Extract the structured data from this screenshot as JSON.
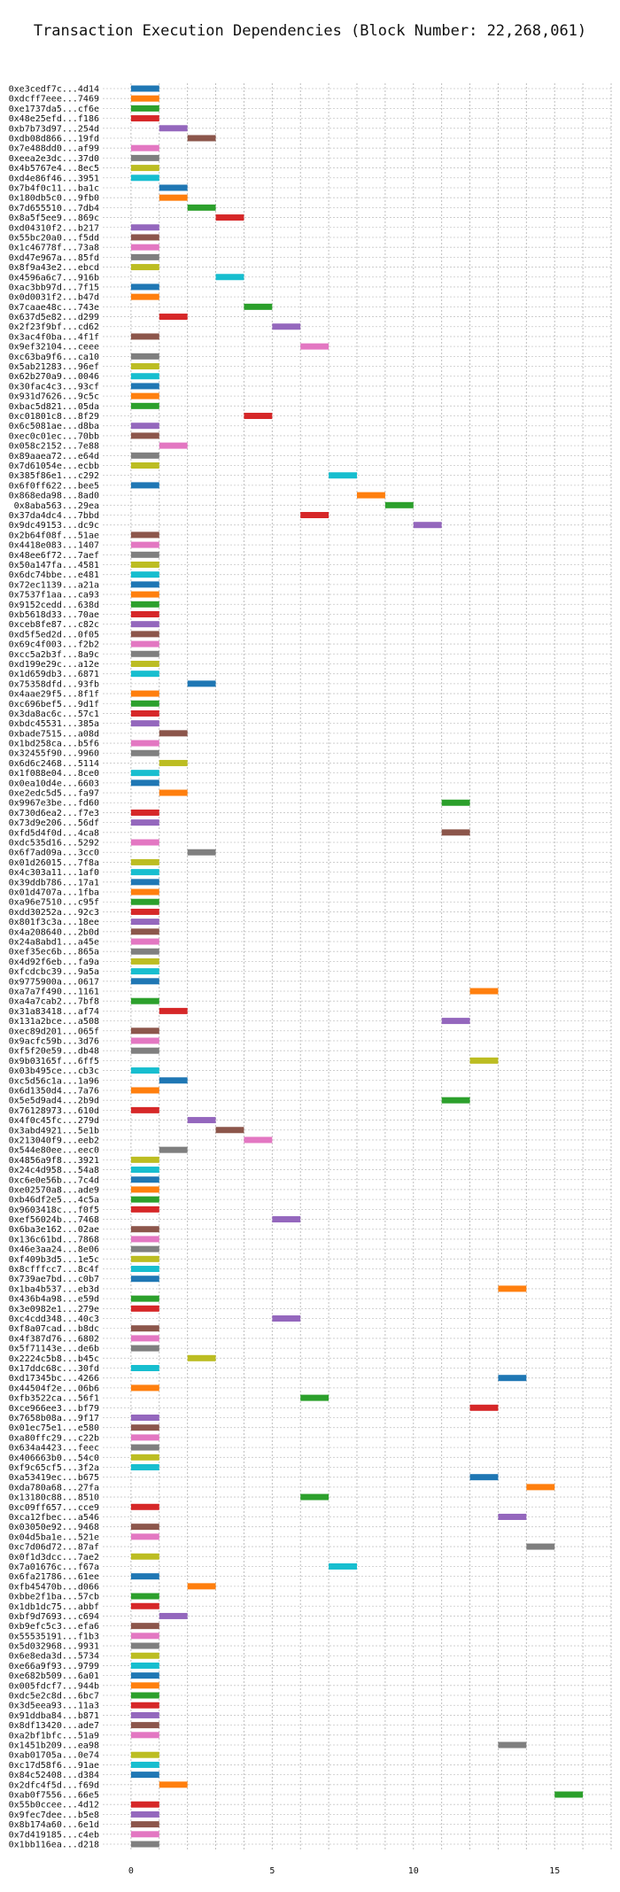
{
  "chart_data": {
    "type": "bar",
    "orientation": "horizontal-gantt",
    "title": "Transaction Execution Dependencies (Block Number: 22,268,061)",
    "xlabel": "",
    "ylabel": "",
    "xlim": [
      -1,
      17
    ],
    "xticks": [
      0,
      5,
      10,
      15
    ],
    "grid": true,
    "palette": [
      "#1f77b4",
      "#ff7f0e",
      "#2ca02c",
      "#d62728",
      "#9467bd",
      "#8c564b",
      "#e377c2",
      "#7f7f7f",
      "#bcbd22",
      "#17becf"
    ],
    "transactions": [
      {
        "id": "0xe3cedf7c...4d14",
        "start": 0,
        "end": 1
      },
      {
        "id": "0xdcff7eee...7469",
        "start": 0,
        "end": 1
      },
      {
        "id": "0xe1737da5...cf6e",
        "start": 0,
        "end": 1
      },
      {
        "id": "0x48e25efd...f186",
        "start": 0,
        "end": 1
      },
      {
        "id": "0xb7b73d97...254d",
        "start": 1,
        "end": 2
      },
      {
        "id": "0xdb08d866...19fd",
        "start": 2,
        "end": 3
      },
      {
        "id": "0x7e488dd0...af99",
        "start": 0,
        "end": 1
      },
      {
        "id": "0xeea2e3dc...37d0",
        "start": 0,
        "end": 1
      },
      {
        "id": "0x4b5767e4...8ec5",
        "start": 0,
        "end": 1
      },
      {
        "id": "0xd4e86f46...3951",
        "start": 0,
        "end": 1
      },
      {
        "id": "0x7b4f0c11...ba1c",
        "start": 1,
        "end": 2
      },
      {
        "id": "0x180db5c0...9fb0",
        "start": 1,
        "end": 2
      },
      {
        "id": "0x7d655510...7db4",
        "start": 2,
        "end": 3
      },
      {
        "id": "0x8a5f5ee9...869c",
        "start": 3,
        "end": 4
      },
      {
        "id": "0xd04310f2...b217",
        "start": 0,
        "end": 1
      },
      {
        "id": "0x55bc20a0...f5dd",
        "start": 0,
        "end": 1
      },
      {
        "id": "0x1c46778f...73a8",
        "start": 0,
        "end": 1
      },
      {
        "id": "0xd47e967a...85fd",
        "start": 0,
        "end": 1
      },
      {
        "id": "0x8f9a43e2...ebcd",
        "start": 0,
        "end": 1
      },
      {
        "id": "0x4596a6c7...916b",
        "start": 3,
        "end": 4
      },
      {
        "id": "0xac3bb97d...7f15",
        "start": 0,
        "end": 1
      },
      {
        "id": "0x0d0031f2...b47d",
        "start": 0,
        "end": 1
      },
      {
        "id": "0x7caae48c...743e",
        "start": 4,
        "end": 5
      },
      {
        "id": "0x637d5e82...d299",
        "start": 1,
        "end": 2
      },
      {
        "id": "0x2f23f9bf...cd62",
        "start": 5,
        "end": 6
      },
      {
        "id": "0x3ac4f0ba...4f1f",
        "start": 0,
        "end": 1
      },
      {
        "id": "0x9ef32104...ceee",
        "start": 6,
        "end": 7
      },
      {
        "id": "0xc63ba9f6...ca10",
        "start": 0,
        "end": 1
      },
      {
        "id": "0x5ab21283...96ef",
        "start": 0,
        "end": 1
      },
      {
        "id": "0x62b270a9...0046",
        "start": 0,
        "end": 1
      },
      {
        "id": "0x30fac4c3...93cf",
        "start": 0,
        "end": 1
      },
      {
        "id": "0x931d7626...9c5c",
        "start": 0,
        "end": 1
      },
      {
        "id": "0xbac5d821...05da",
        "start": 0,
        "end": 1
      },
      {
        "id": "0xc01801c8...8f29",
        "start": 4,
        "end": 5
      },
      {
        "id": "0x6c5081ae...d8ba",
        "start": 0,
        "end": 1
      },
      {
        "id": "0xec0c01ec...70bb",
        "start": 0,
        "end": 1
      },
      {
        "id": "0x058c2152...7e88",
        "start": 1,
        "end": 2
      },
      {
        "id": "0x89aaea72...e64d",
        "start": 0,
        "end": 1
      },
      {
        "id": "0x7d61054e...ecbb",
        "start": 0,
        "end": 1
      },
      {
        "id": "0x385f86e1...c292",
        "start": 7,
        "end": 8
      },
      {
        "id": "0x6f0ff622...bee5",
        "start": 0,
        "end": 1
      },
      {
        "id": "0x868eda98...8ad0",
        "start": 8,
        "end": 9
      },
      {
        "id": "0x8aba563...29ea",
        "start": 9,
        "end": 10
      },
      {
        "id": "0x37da4dc4...7bbd",
        "start": 6,
        "end": 7
      },
      {
        "id": "0x9dc49153...dc9c",
        "start": 10,
        "end": 11
      },
      {
        "id": "0x2b64f08f...51ae",
        "start": 0,
        "end": 1
      },
      {
        "id": "0x4418e083...1407",
        "start": 0,
        "end": 1
      },
      {
        "id": "0x48ee6f72...7aef",
        "start": 0,
        "end": 1
      },
      {
        "id": "0x50a147fa...4581",
        "start": 0,
        "end": 1
      },
      {
        "id": "0x6dc74bbe...e481",
        "start": 0,
        "end": 1
      },
      {
        "id": "0x72ec1139...a21a",
        "start": 0,
        "end": 1
      },
      {
        "id": "0x7537f1aa...ca93",
        "start": 0,
        "end": 1
      },
      {
        "id": "0x9152cedd...638d",
        "start": 0,
        "end": 1
      },
      {
        "id": "0xb5618d33...70ae",
        "start": 0,
        "end": 1
      },
      {
        "id": "0xceb8fe87...c82c",
        "start": 0,
        "end": 1
      },
      {
        "id": "0xd5f5ed2d...0f05",
        "start": 0,
        "end": 1
      },
      {
        "id": "0x69c4f003...f2b2",
        "start": 0,
        "end": 1
      },
      {
        "id": "0xcc5a2b3f...8a9c",
        "start": 0,
        "end": 1
      },
      {
        "id": "0xd199e29c...a12e",
        "start": 0,
        "end": 1
      },
      {
        "id": "0x1d659db3...6871",
        "start": 0,
        "end": 1
      },
      {
        "id": "0x75358dfd...93fb",
        "start": 2,
        "end": 3
      },
      {
        "id": "0x4aae29f5...8f1f",
        "start": 0,
        "end": 1
      },
      {
        "id": "0xc696bef5...9d1f",
        "start": 0,
        "end": 1
      },
      {
        "id": "0x3da8ac6c...57c1",
        "start": 0,
        "end": 1
      },
      {
        "id": "0xbdc45531...385a",
        "start": 0,
        "end": 1
      },
      {
        "id": "0xbade7515...a08d",
        "start": 1,
        "end": 2
      },
      {
        "id": "0x1bd258ca...b5f6",
        "start": 0,
        "end": 1
      },
      {
        "id": "0x32455f90...9960",
        "start": 0,
        "end": 1
      },
      {
        "id": "0x6d6c2468...5114",
        "start": 1,
        "end": 2
      },
      {
        "id": "0x1f088e04...8ce0",
        "start": 0,
        "end": 1
      },
      {
        "id": "0x0ea10d4e...6603",
        "start": 0,
        "end": 1
      },
      {
        "id": "0xe2edc5d5...fa97",
        "start": 1,
        "end": 2
      },
      {
        "id": "0x9967e3be...fd60",
        "start": 11,
        "end": 12
      },
      {
        "id": "0x730d6ea2...f7e3",
        "start": 0,
        "end": 1
      },
      {
        "id": "0x73d9e206...56df",
        "start": 0,
        "end": 1
      },
      {
        "id": "0xfd5d4f0d...4ca8",
        "start": 11,
        "end": 12
      },
      {
        "id": "0xdc535d16...5292",
        "start": 0,
        "end": 1
      },
      {
        "id": "0x6f7ad09a...3cc0",
        "start": 2,
        "end": 3
      },
      {
        "id": "0x01d26015...7f8a",
        "start": 0,
        "end": 1
      },
      {
        "id": "0x4c303a11...1af0",
        "start": 0,
        "end": 1
      },
      {
        "id": "0x39ddb786...17a1",
        "start": 0,
        "end": 1
      },
      {
        "id": "0x01d4707a...1fba",
        "start": 0,
        "end": 1
      },
      {
        "id": "0xa96e7510...c95f",
        "start": 0,
        "end": 1
      },
      {
        "id": "0xdd30252a...92c3",
        "start": 0,
        "end": 1
      },
      {
        "id": "0x801f3c3a...18ee",
        "start": 0,
        "end": 1
      },
      {
        "id": "0x4a208640...2b0d",
        "start": 0,
        "end": 1
      },
      {
        "id": "0x24a8abd1...a45e",
        "start": 0,
        "end": 1
      },
      {
        "id": "0xef35ec6b...865a",
        "start": 0,
        "end": 1
      },
      {
        "id": "0x4d92f6eb...fa9a",
        "start": 0,
        "end": 1
      },
      {
        "id": "0xfcdcbc39...9a5a",
        "start": 0,
        "end": 1
      },
      {
        "id": "0x9775900a...0617",
        "start": 0,
        "end": 1
      },
      {
        "id": "0xa7a7f490...1161",
        "start": 12,
        "end": 13
      },
      {
        "id": "0xa4a7cab2...7bf8",
        "start": 0,
        "end": 1
      },
      {
        "id": "0x31a83418...af74",
        "start": 1,
        "end": 2
      },
      {
        "id": "0x131a2bce...a508",
        "start": 11,
        "end": 12
      },
      {
        "id": "0xec89d201...065f",
        "start": 0,
        "end": 1
      },
      {
        "id": "0x9acfc59b...3d76",
        "start": 0,
        "end": 1
      },
      {
        "id": "0xf5f20e59...db48",
        "start": 0,
        "end": 1
      },
      {
        "id": "0x9b03165f...6ff5",
        "start": 12,
        "end": 13
      },
      {
        "id": "0x03b495ce...cb3c",
        "start": 0,
        "end": 1
      },
      {
        "id": "0xc5d56c1a...1a96",
        "start": 1,
        "end": 2
      },
      {
        "id": "0x6d1350d4...7a76",
        "start": 0,
        "end": 1
      },
      {
        "id": "0x5e5d9ad4...2b9d",
        "start": 11,
        "end": 12
      },
      {
        "id": "0x76128973...610d",
        "start": 0,
        "end": 1
      },
      {
        "id": "0x4f0c45fc...279d",
        "start": 2,
        "end": 3
      },
      {
        "id": "0x3abd4921...5e1b",
        "start": 3,
        "end": 4
      },
      {
        "id": "0x213040f9...eeb2",
        "start": 4,
        "end": 5
      },
      {
        "id": "0x544e80ee...eec0",
        "start": 1,
        "end": 2
      },
      {
        "id": "0x4856a9f8...3921",
        "start": 0,
        "end": 1
      },
      {
        "id": "0x24c4d958...54a8",
        "start": 0,
        "end": 1
      },
      {
        "id": "0xc6e0e56b...7c4d",
        "start": 0,
        "end": 1
      },
      {
        "id": "0xe02570a8...ade9",
        "start": 0,
        "end": 1
      },
      {
        "id": "0xb46df2e5...4c5a",
        "start": 0,
        "end": 1
      },
      {
        "id": "0x9603418c...f0f5",
        "start": 0,
        "end": 1
      },
      {
        "id": "0xef56024b...7468",
        "start": 5,
        "end": 6
      },
      {
        "id": "0x6ba3e162...02ae",
        "start": 0,
        "end": 1
      },
      {
        "id": "0x136c61bd...7868",
        "start": 0,
        "end": 1
      },
      {
        "id": "0x46e3aa24...8e06",
        "start": 0,
        "end": 1
      },
      {
        "id": "0xf409b3d5...1e5c",
        "start": 0,
        "end": 1
      },
      {
        "id": "0x8cfffcc7...8c4f",
        "start": 0,
        "end": 1
      },
      {
        "id": "0x739ae7bd...c0b7",
        "start": 0,
        "end": 1
      },
      {
        "id": "0x1ba4b537...eb3d",
        "start": 13,
        "end": 14
      },
      {
        "id": "0x436b4a98...e59d",
        "start": 0,
        "end": 1
      },
      {
        "id": "0x3e0982e1...279e",
        "start": 0,
        "end": 1
      },
      {
        "id": "0xc4cdd348...40c3",
        "start": 5,
        "end": 6
      },
      {
        "id": "0xf8a07cad...b8dc",
        "start": 0,
        "end": 1
      },
      {
        "id": "0x4f387d76...6802",
        "start": 0,
        "end": 1
      },
      {
        "id": "0x5f71143e...de6b",
        "start": 0,
        "end": 1
      },
      {
        "id": "0x2224c5b8...b45c",
        "start": 2,
        "end": 3
      },
      {
        "id": "0x17ddc68c...30fd",
        "start": 0,
        "end": 1
      },
      {
        "id": "0xd17345bc...4266",
        "start": 13,
        "end": 14
      },
      {
        "id": "0x44504f2e...06b6",
        "start": 0,
        "end": 1
      },
      {
        "id": "0xfb3522ca...56f1",
        "start": 6,
        "end": 7
      },
      {
        "id": "0xce966ee3...bf79",
        "start": 12,
        "end": 13
      },
      {
        "id": "0x7658b08a...9f17",
        "start": 0,
        "end": 1
      },
      {
        "id": "0x01ec75e1...e580",
        "start": 0,
        "end": 1
      },
      {
        "id": "0xa80ffc29...c22b",
        "start": 0,
        "end": 1
      },
      {
        "id": "0x634a4423...feec",
        "start": 0,
        "end": 1
      },
      {
        "id": "0x406663b0...54c0",
        "start": 0,
        "end": 1
      },
      {
        "id": "0xf9c65cf5...3f2a",
        "start": 0,
        "end": 1
      },
      {
        "id": "0xa53419ec...b675",
        "start": 12,
        "end": 13
      },
      {
        "id": "0xda780a68...27fa",
        "start": 14,
        "end": 15
      },
      {
        "id": "0x13180c88...8510",
        "start": 6,
        "end": 7
      },
      {
        "id": "0xc09ff657...cce9",
        "start": 0,
        "end": 1
      },
      {
        "id": "0xca12fbec...a546",
        "start": 13,
        "end": 14
      },
      {
        "id": "0x03050e92...9468",
        "start": 0,
        "end": 1
      },
      {
        "id": "0x04d5ba1e...521e",
        "start": 0,
        "end": 1
      },
      {
        "id": "0xc7d06d72...87af",
        "start": 14,
        "end": 15
      },
      {
        "id": "0x0f1d3dcc...7ae2",
        "start": 0,
        "end": 1
      },
      {
        "id": "0x7a01676c...f67a",
        "start": 7,
        "end": 8
      },
      {
        "id": "0x6fa21786...61ee",
        "start": 0,
        "end": 1
      },
      {
        "id": "0xfb45470b...d066",
        "start": 2,
        "end": 3
      },
      {
        "id": "0xbbe2f1ba...57cb",
        "start": 0,
        "end": 1
      },
      {
        "id": "0x1db1dc75...abbf",
        "start": 0,
        "end": 1
      },
      {
        "id": "0xbf9d7693...c694",
        "start": 1,
        "end": 2
      },
      {
        "id": "0xb9efc5c3...efa6",
        "start": 0,
        "end": 1
      },
      {
        "id": "0x55535191...f1b3",
        "start": 0,
        "end": 1
      },
      {
        "id": "0x5d032968...9931",
        "start": 0,
        "end": 1
      },
      {
        "id": "0x6e8eda3d...5734",
        "start": 0,
        "end": 1
      },
      {
        "id": "0xe66a9f93...9799",
        "start": 0,
        "end": 1
      },
      {
        "id": "0xe682b509...6a01",
        "start": 0,
        "end": 1
      },
      {
        "id": "0x005fdcf7...944b",
        "start": 0,
        "end": 1
      },
      {
        "id": "0xdc5e2c8d...6bc7",
        "start": 0,
        "end": 1
      },
      {
        "id": "0x3d5eea93...11a3",
        "start": 0,
        "end": 1
      },
      {
        "id": "0x91ddba84...b871",
        "start": 0,
        "end": 1
      },
      {
        "id": "0x8df13420...ade7",
        "start": 0,
        "end": 1
      },
      {
        "id": "0xa2bf1bfc...51a9",
        "start": 0,
        "end": 1
      },
      {
        "id": "0x1451b209...ea98",
        "start": 13,
        "end": 14
      },
      {
        "id": "0xab01705a...0e74",
        "start": 0,
        "end": 1
      },
      {
        "id": "0xc17d58f6...91ae",
        "start": 0,
        "end": 1
      },
      {
        "id": "0x84c52408...d384",
        "start": 0,
        "end": 1
      },
      {
        "id": "0x2dfc4f5d...f69d",
        "start": 1,
        "end": 2
      },
      {
        "id": "0xab0f7556...66e5",
        "start": 15,
        "end": 16
      },
      {
        "id": "0x55b0ccee...4d12",
        "start": 0,
        "end": 1
      },
      {
        "id": "0x9fec7dee...b5e8",
        "start": 0,
        "end": 1
      },
      {
        "id": "0x8b174a60...6e1d",
        "start": 0,
        "end": 1
      },
      {
        "id": "0x7d419185...c4eb",
        "start": 0,
        "end": 1
      },
      {
        "id": "0x1bb116ea...d218",
        "start": 0,
        "end": 1
      }
    ]
  }
}
